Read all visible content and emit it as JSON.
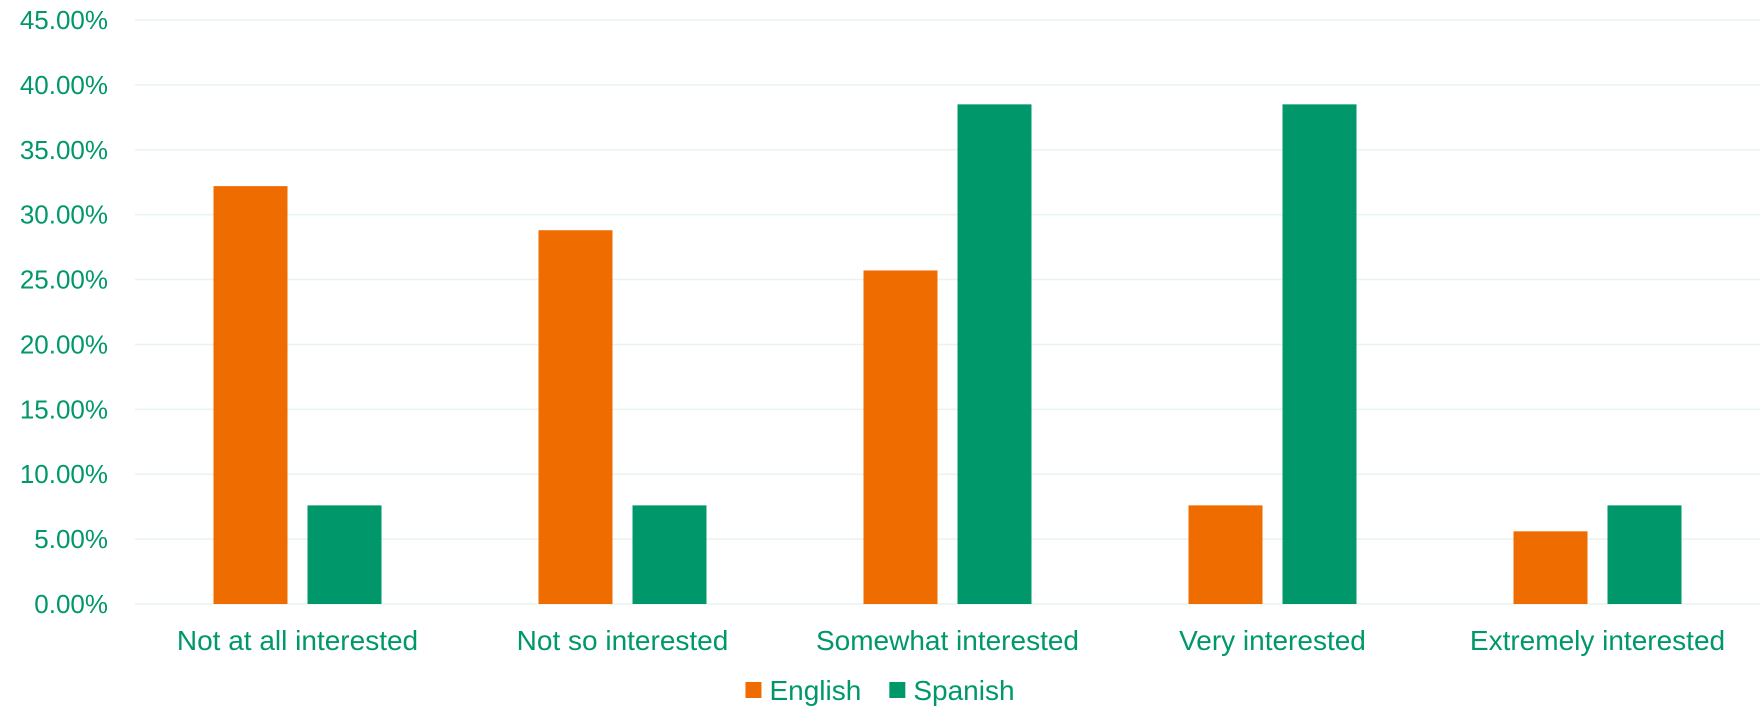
{
  "chart_data": {
    "type": "bar",
    "title": "",
    "xlabel": "",
    "ylabel": "",
    "categories": [
      "Not at all interested",
      "Not so interested",
      "Somewhat interested",
      "Very interested",
      "Extremely interested"
    ],
    "series": [
      {
        "name": "English",
        "color": "#ee6c00",
        "values": [
          0.322,
          0.288,
          0.257,
          0.076,
          0.056
        ]
      },
      {
        "name": "Spanish",
        "color": "#00986a",
        "values": [
          0.076,
          0.076,
          0.385,
          0.385,
          0.076
        ]
      }
    ],
    "ylim": [
      0,
      0.45
    ],
    "yticks": [
      "0.00%",
      "5.00%",
      "10.00%",
      "15.00%",
      "20.00%",
      "25.00%",
      "30.00%",
      "35.00%",
      "40.00%",
      "45.00%"
    ],
    "grid": true,
    "legend_position": "bottom",
    "text_color": "#00986a",
    "grid_color": "#e8f4ee"
  }
}
